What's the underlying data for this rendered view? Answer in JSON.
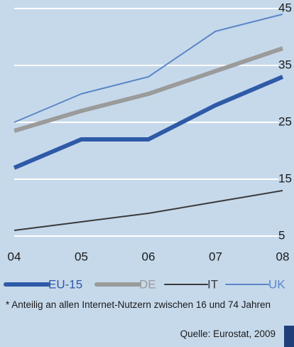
{
  "chart_data": {
    "type": "line",
    "categories": [
      "04",
      "05",
      "06",
      "07",
      "08"
    ],
    "series": [
      {
        "name": "EU-15",
        "color": "#2f5aa8",
        "values": [
          17,
          22,
          22,
          28,
          33
        ]
      },
      {
        "name": "DE",
        "color": "#9b9b9b",
        "values": [
          23.5,
          27,
          30,
          34,
          38
        ]
      },
      {
        "name": "IT",
        "color": "#3a3a3a",
        "values": [
          6,
          7.5,
          9,
          11,
          13
        ]
      },
      {
        "name": "UK",
        "color": "#5b87c7",
        "values": [
          25,
          30,
          33,
          41,
          44
        ]
      }
    ],
    "ylim": [
      5,
      45
    ],
    "yticks": [
      5,
      15,
      25,
      35,
      45
    ],
    "grid": true,
    "footnote": "* Anteilig an allen Internet-Nutzern zwischen 16 und 74 Jahren",
    "source": "Quelle: Eurostat, 2009"
  }
}
